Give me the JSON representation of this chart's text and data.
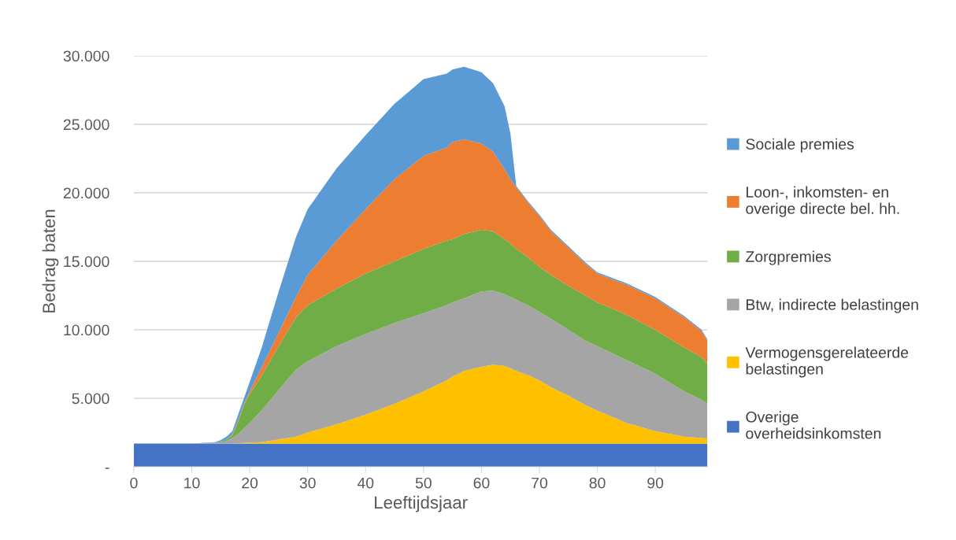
{
  "chart_data": {
    "type": "area",
    "stacked": true,
    "xlabel": "Leeftijdsjaar",
    "ylabel": "Bedrag baten",
    "x": [
      0,
      10,
      14,
      15,
      16,
      17,
      18,
      19,
      20,
      22,
      25,
      28,
      30,
      35,
      40,
      45,
      50,
      52,
      54,
      55,
      57,
      60,
      62,
      64,
      65,
      66,
      68,
      70,
      72,
      75,
      78,
      80,
      85,
      90,
      95,
      98,
      99
    ],
    "xlim": [
      0,
      99
    ],
    "xticks": [
      0,
      10,
      20,
      30,
      40,
      50,
      60,
      70,
      80,
      90
    ],
    "ylim": [
      0,
      30000
    ],
    "yticks": [
      {
        "value": 0,
        "label": "-"
      },
      {
        "value": 5000,
        "label": "5.000"
      },
      {
        "value": 10000,
        "label": "10.000"
      },
      {
        "value": 15000,
        "label": "15.000"
      },
      {
        "value": 20000,
        "label": "20.000"
      },
      {
        "value": 25000,
        "label": "25.000"
      },
      {
        "value": 30000,
        "label": "30.000"
      }
    ],
    "grid": "y",
    "legend": "right",
    "series": [
      {
        "name": "Overige\noverheidsinkomsten",
        "color": "#4472c4",
        "values": [
          1700,
          1700,
          1700,
          1700,
          1700,
          1700,
          1700,
          1700,
          1700,
          1700,
          1700,
          1700,
          1700,
          1700,
          1700,
          1700,
          1700,
          1700,
          1700,
          1700,
          1700,
          1700,
          1700,
          1700,
          1700,
          1700,
          1700,
          1700,
          1700,
          1700,
          1700,
          1700,
          1700,
          1700,
          1700,
          1700,
          1700
        ]
      },
      {
        "name": "Vermogensgerelateerde\nbelastingen",
        "color": "#ffc000",
        "values": [
          0,
          0,
          0,
          0,
          0,
          0,
          20,
          40,
          60,
          100,
          300,
          500,
          800,
          1400,
          2100,
          2900,
          3800,
          4200,
          4600,
          4900,
          5300,
          5600,
          5750,
          5650,
          5500,
          5300,
          5000,
          4600,
          4100,
          3500,
          2800,
          2400,
          1500,
          900,
          500,
          400,
          370
        ]
      },
      {
        "name": "Btw, indirecte belastingen",
        "color": "#a5a5a5",
        "values": [
          0,
          0,
          50,
          100,
          200,
          400,
          680,
          1060,
          1440,
          2300,
          3600,
          4900,
          5200,
          5700,
          5900,
          5900,
          5700,
          5600,
          5500,
          5400,
          5300,
          5500,
          5400,
          5250,
          5200,
          5200,
          5100,
          5000,
          5000,
          4800,
          4700,
          4700,
          4600,
          4200,
          3300,
          2800,
          2530
        ]
      },
      {
        "name": "Zorgpremies",
        "color": "#70ad47",
        "values": [
          0,
          0,
          0,
          50,
          100,
          200,
          900,
          1700,
          2100,
          2500,
          3200,
          3800,
          4100,
          4200,
          4400,
          4500,
          4700,
          4700,
          4700,
          4600,
          4700,
          4500,
          4350,
          4000,
          3900,
          3700,
          3500,
          3300,
          3200,
          3200,
          3300,
          3200,
          3300,
          3200,
          3200,
          3100,
          2900
        ]
      },
      {
        "name": "Loon-, inkomsten- en\noverige directe bel. hh.",
        "color": "#ed7d31",
        "values": [
          0,
          0,
          0,
          0,
          0,
          50,
          100,
          100,
          200,
          600,
          1000,
          1500,
          2200,
          3500,
          4700,
          6000,
          6800,
          6800,
          6800,
          7100,
          6900,
          6300,
          5800,
          5100,
          4700,
          4500,
          4000,
          3700,
          3200,
          2800,
          2300,
          2100,
          2200,
          2300,
          2200,
          1900,
          1700
        ]
      },
      {
        "name": "Sociale premies",
        "color": "#5b9bd5",
        "values": [
          0,
          0,
          50,
          100,
          200,
          250,
          400,
          400,
          700,
          1400,
          3000,
          4400,
          4800,
          5300,
          5400,
          5500,
          5600,
          5500,
          5400,
          5300,
          5300,
          5200,
          5000,
          4600,
          3300,
          100,
          100,
          100,
          100,
          100,
          100,
          100,
          100,
          100,
          100,
          100,
          100
        ]
      }
    ]
  }
}
